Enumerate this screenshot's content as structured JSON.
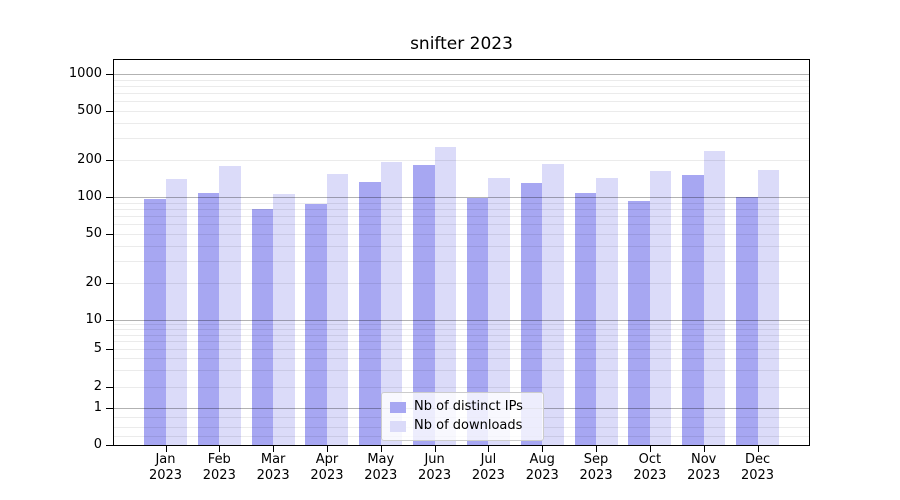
{
  "title": "snifter 2023",
  "chart_data": {
    "type": "bar",
    "title": "snifter 2023",
    "categories": [
      "Jan 2023",
      "Feb 2023",
      "Mar 2023",
      "Apr 2023",
      "May 2023",
      "Jun 2023",
      "Jul 2023",
      "Aug 2023",
      "Sep 2023",
      "Oct 2023",
      "Nov 2023",
      "Dec 2023"
    ],
    "series": [
      {
        "name": "Nb of distinct IPs",
        "color": "#a7a7f2",
        "values": [
          97,
          107,
          80,
          88,
          132,
          181,
          98,
          129,
          107,
          93,
          152,
          100
        ]
      },
      {
        "name": "Nb of downloads",
        "color": "#dbdbf9",
        "values": [
          139,
          177,
          106,
          153,
          192,
          255,
          142,
          184,
          144,
          164,
          238,
          167
        ]
      }
    ],
    "xlabel": "",
    "ylabel": "",
    "yscale": "symlog",
    "ytick_labels": [
      "1000",
      "500",
      "200",
      "100",
      "50",
      "20",
      "10",
      "5",
      "2",
      "1",
      "0"
    ],
    "ytick_values": [
      1000,
      500,
      200,
      100,
      50,
      20,
      10,
      5,
      2,
      1,
      0
    ],
    "ylim": [
      0,
      1400
    ],
    "grid": true,
    "legend_position": "lower center"
  },
  "colors": {
    "bar_dark": "#a7a7f2",
    "bar_light": "#dbdbf9",
    "axis": "#000000",
    "legend_border": "#cccccc"
  }
}
